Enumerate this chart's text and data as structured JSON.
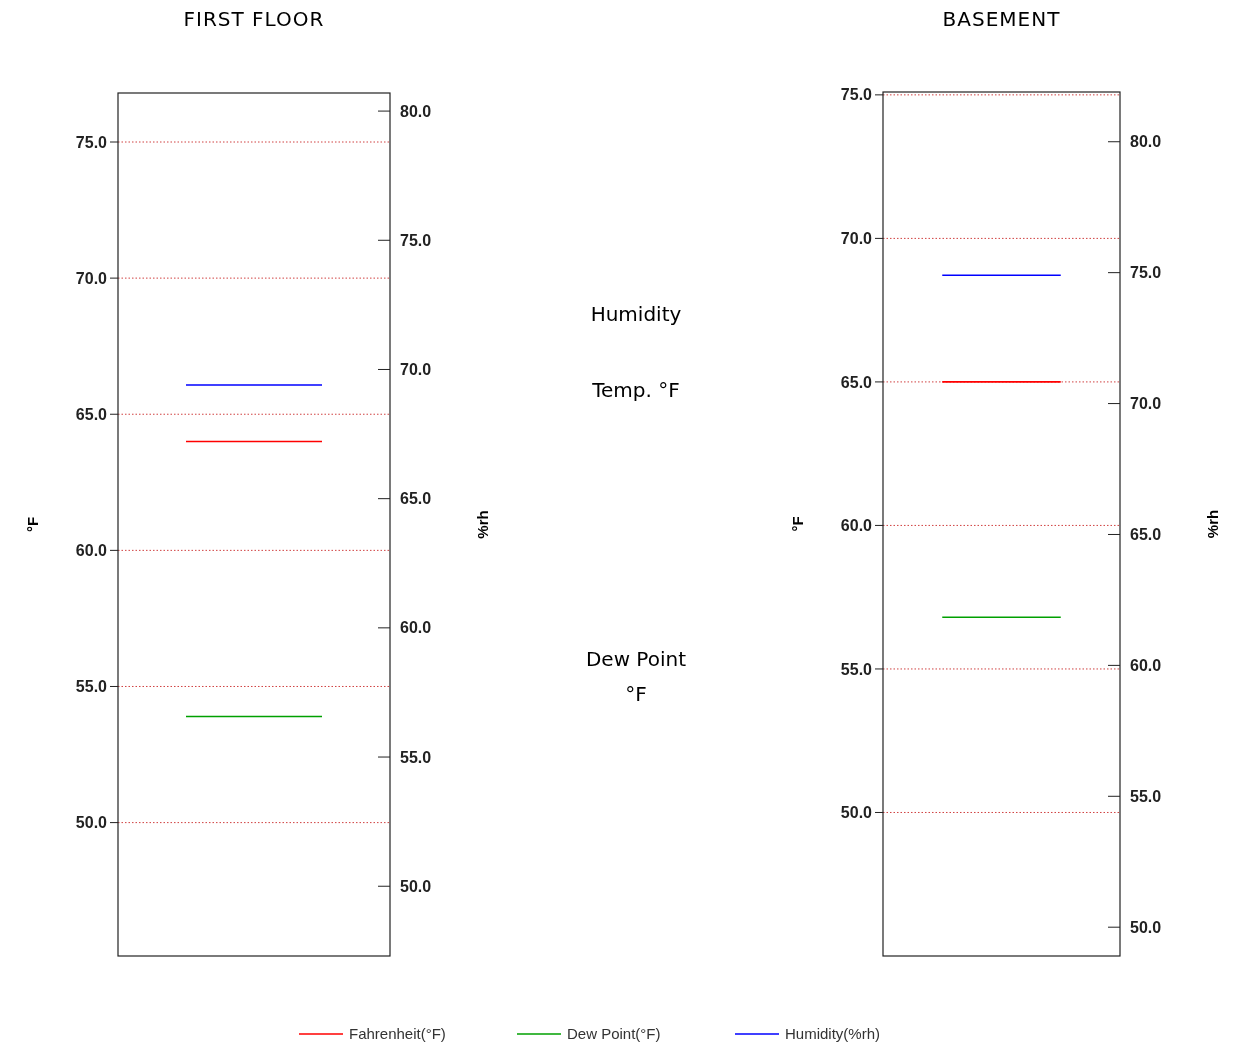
{
  "chart_data": [
    {
      "type": "line",
      "title": "FIRST FLOOR",
      "ylabel": "°F",
      "y2label": "%rh",
      "categories": [
        null,
        null
      ],
      "ylim": [
        45.1,
        76.8
      ],
      "yticks": [
        {
          "value": 50,
          "label": "50.0"
        },
        {
          "value": 55,
          "label": "55.0"
        },
        {
          "value": 60,
          "label": "60.0"
        },
        {
          "value": 65,
          "label": "65.0"
        },
        {
          "value": 70,
          "label": "70.0"
        },
        {
          "value": 75,
          "label": "75.0"
        }
      ],
      "y2lim": [
        47.3,
        80.7
      ],
      "y2ticks": [
        {
          "value": 50,
          "label": "50.0"
        },
        {
          "value": 55,
          "label": "55.0"
        },
        {
          "value": 60,
          "label": "60.0"
        },
        {
          "value": 65,
          "label": "65.0"
        },
        {
          "value": 70,
          "label": "70.0"
        },
        {
          "value": 75,
          "label": "75.0"
        },
        {
          "value": 80,
          "label": "80.0"
        }
      ],
      "grid": "y",
      "legend": false,
      "annotations": [
        "Humidity",
        "Temp. °F",
        "Dew Point\n°F"
      ],
      "series": [
        {
          "color": "#ff0000",
          "values": [
            64.0,
            64.0
          ]
        },
        {
          "color": "#00a000",
          "values": [
            53.9,
            53.9
          ]
        },
        {
          "color": "#0000ff",
          "values": [
            69.4,
            69.4
          ],
          "axis": "y2"
        }
      ]
    },
    {
      "type": "line",
      "title": "BASEMENT",
      "ylabel": "°F",
      "y2label": "%rh",
      "categories": [
        null,
        null
      ],
      "ylim": [
        45.0,
        75.1
      ],
      "yticks": [
        {
          "value": 50,
          "label": "50.0"
        },
        {
          "value": 55,
          "label": "55.0"
        },
        {
          "value": 60,
          "label": "60.0"
        },
        {
          "value": 65,
          "label": "65.0"
        },
        {
          "value": 70,
          "label": "70.0"
        },
        {
          "value": 75,
          "label": "75.0"
        }
      ],
      "y2lim": [
        48.9,
        81.9
      ],
      "y2ticks": [
        {
          "value": 50,
          "label": "50.0"
        },
        {
          "value": 55,
          "label": "55.0"
        },
        {
          "value": 60,
          "label": "60.0"
        },
        {
          "value": 65,
          "label": "65.0"
        },
        {
          "value": 70,
          "label": "70.0"
        },
        {
          "value": 75,
          "label": "75.0"
        },
        {
          "value": 80,
          "label": "80.0"
        }
      ],
      "grid": "y",
      "legend": "bottom",
      "series": [
        {
          "name": "Fahrenheit(°F)",
          "color": "#ff0000",
          "values": [
            65.0,
            65.0
          ]
        },
        {
          "name": "Dew Point(°F)",
          "color": "#00a000",
          "values": [
            56.8,
            56.8
          ]
        },
        {
          "name": "Humidity(%rh)",
          "color": "#0000ff",
          "values": [
            74.9,
            74.9
          ],
          "axis": "y2"
        }
      ]
    }
  ]
}
